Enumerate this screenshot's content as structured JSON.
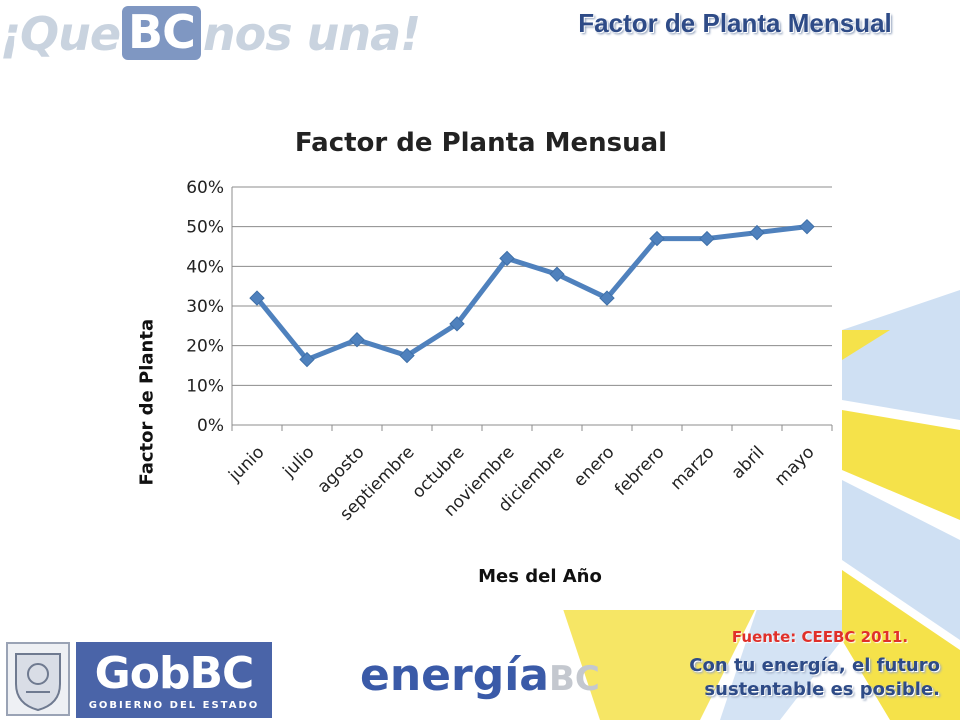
{
  "header": {
    "slogan_pre": "¡Que",
    "slogan_bc": "BC",
    "slogan_post": "nos una!",
    "title": "Factor de Planta Mensual"
  },
  "colors": {
    "accent": "#2e4b87",
    "series": "#4f81bd",
    "source_red": "#e0302a",
    "ray_yellow": "#f5e24a",
    "ray_blue": "#cfe0f3"
  },
  "chart_data": {
    "type": "line",
    "title": "Factor de Planta Mensual",
    "xlabel": "Mes del Año",
    "ylabel": "Factor de Planta",
    "categories": [
      "junio",
      "julio",
      "agosto",
      "septiembre",
      "octubre",
      "noviembre",
      "diciembre",
      "enero",
      "febrero",
      "marzo",
      "abril",
      "mayo"
    ],
    "series": [
      {
        "values": [
          0.32,
          0.165,
          0.215,
          0.175,
          0.255,
          0.42,
          0.38,
          0.32,
          0.47,
          0.47,
          0.485,
          0.5
        ]
      }
    ],
    "ylim": [
      0,
      0.6
    ],
    "yticks": [
      "0%",
      "10%",
      "20%",
      "30%",
      "40%",
      "50%",
      "60%"
    ],
    "grid": true,
    "marker": "diamond"
  },
  "footer": {
    "source": "Fuente: CEEBC 2011.",
    "tagline_line1": "Con tu energía, el futuro",
    "tagline_line2": "sustentable es posible.",
    "gob_name": "GobBC",
    "gob_sub": "GOBIERNO DEL ESTADO",
    "energia_main": "energía",
    "energia_bc": "BC"
  }
}
